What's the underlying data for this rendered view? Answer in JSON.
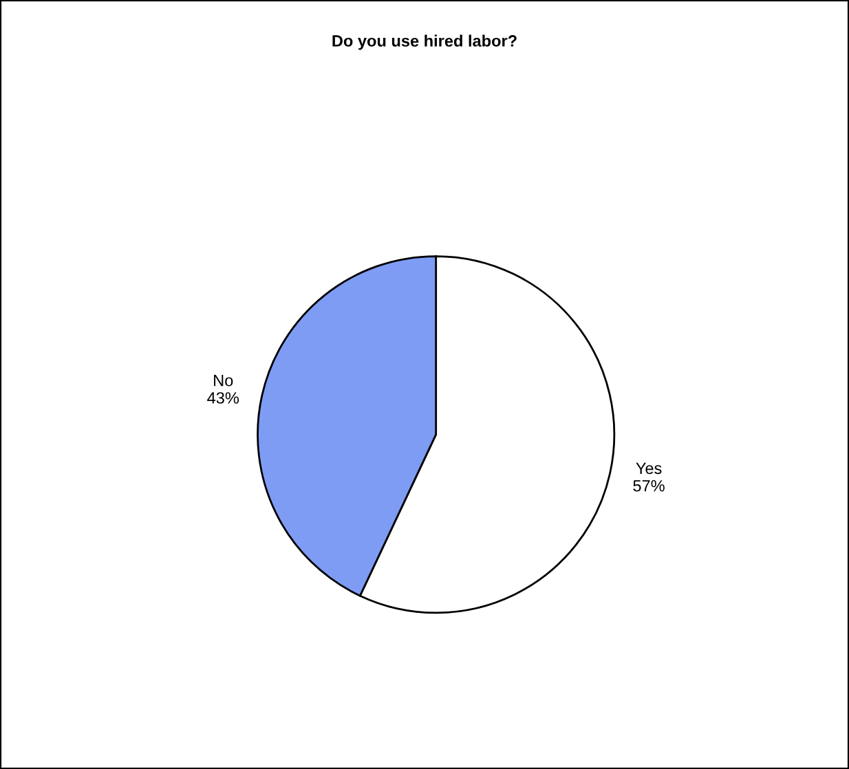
{
  "chart_data": {
    "type": "pie",
    "title": "Do you use hired labor?",
    "categories": [
      "Yes",
      "No"
    ],
    "values": [
      57,
      43
    ],
    "value_labels": [
      "57%",
      "43%"
    ],
    "colors": [
      "#ffffff",
      "#7f9cf5"
    ],
    "legend": false
  }
}
